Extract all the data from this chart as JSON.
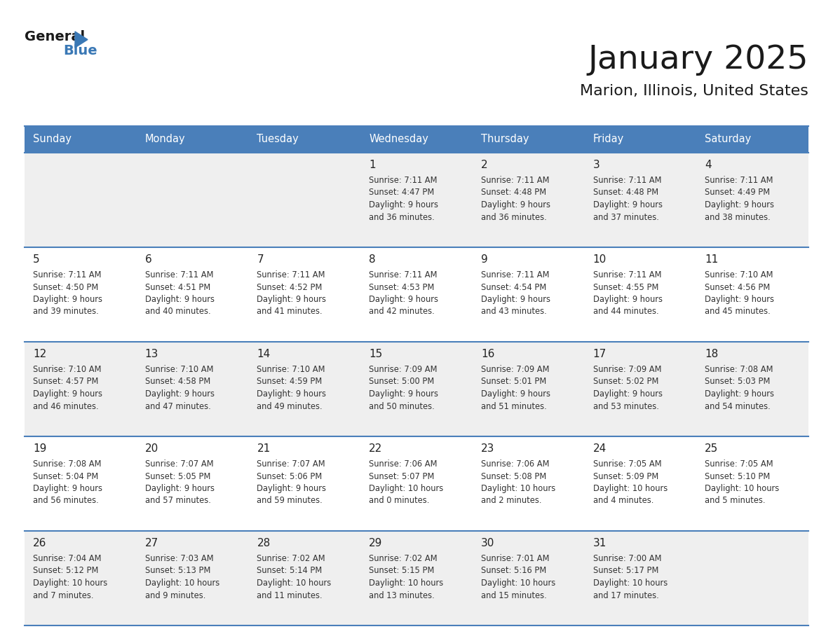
{
  "title": "January 2025",
  "subtitle": "Marion, Illinois, United States",
  "header_color": "#4a7fba",
  "header_text_color": "#FFFFFF",
  "cell_bg_white": "#FFFFFF",
  "cell_bg_gray": "#EFEFEF",
  "border_color": "#4a7fba",
  "text_color": "#333333",
  "day_num_color": "#222222",
  "days_of_week": [
    "Sunday",
    "Monday",
    "Tuesday",
    "Wednesday",
    "Thursday",
    "Friday",
    "Saturday"
  ],
  "calendar_data": [
    [
      {
        "day": "",
        "sunrise": "",
        "sunset": "",
        "daylight": ""
      },
      {
        "day": "",
        "sunrise": "",
        "sunset": "",
        "daylight": ""
      },
      {
        "day": "",
        "sunrise": "",
        "sunset": "",
        "daylight": ""
      },
      {
        "day": "1",
        "sunrise": "7:11 AM",
        "sunset": "4:47 PM",
        "daylight": "9 hours and 36 minutes."
      },
      {
        "day": "2",
        "sunrise": "7:11 AM",
        "sunset": "4:48 PM",
        "daylight": "9 hours and 36 minutes."
      },
      {
        "day": "3",
        "sunrise": "7:11 AM",
        "sunset": "4:48 PM",
        "daylight": "9 hours and 37 minutes."
      },
      {
        "day": "4",
        "sunrise": "7:11 AM",
        "sunset": "4:49 PM",
        "daylight": "9 hours and 38 minutes."
      }
    ],
    [
      {
        "day": "5",
        "sunrise": "7:11 AM",
        "sunset": "4:50 PM",
        "daylight": "9 hours and 39 minutes."
      },
      {
        "day": "6",
        "sunrise": "7:11 AM",
        "sunset": "4:51 PM",
        "daylight": "9 hours and 40 minutes."
      },
      {
        "day": "7",
        "sunrise": "7:11 AM",
        "sunset": "4:52 PM",
        "daylight": "9 hours and 41 minutes."
      },
      {
        "day": "8",
        "sunrise": "7:11 AM",
        "sunset": "4:53 PM",
        "daylight": "9 hours and 42 minutes."
      },
      {
        "day": "9",
        "sunrise": "7:11 AM",
        "sunset": "4:54 PM",
        "daylight": "9 hours and 43 minutes."
      },
      {
        "day": "10",
        "sunrise": "7:11 AM",
        "sunset": "4:55 PM",
        "daylight": "9 hours and 44 minutes."
      },
      {
        "day": "11",
        "sunrise": "7:10 AM",
        "sunset": "4:56 PM",
        "daylight": "9 hours and 45 minutes."
      }
    ],
    [
      {
        "day": "12",
        "sunrise": "7:10 AM",
        "sunset": "4:57 PM",
        "daylight": "9 hours and 46 minutes."
      },
      {
        "day": "13",
        "sunrise": "7:10 AM",
        "sunset": "4:58 PM",
        "daylight": "9 hours and 47 minutes."
      },
      {
        "day": "14",
        "sunrise": "7:10 AM",
        "sunset": "4:59 PM",
        "daylight": "9 hours and 49 minutes."
      },
      {
        "day": "15",
        "sunrise": "7:09 AM",
        "sunset": "5:00 PM",
        "daylight": "9 hours and 50 minutes."
      },
      {
        "day": "16",
        "sunrise": "7:09 AM",
        "sunset": "5:01 PM",
        "daylight": "9 hours and 51 minutes."
      },
      {
        "day": "17",
        "sunrise": "7:09 AM",
        "sunset": "5:02 PM",
        "daylight": "9 hours and 53 minutes."
      },
      {
        "day": "18",
        "sunrise": "7:08 AM",
        "sunset": "5:03 PM",
        "daylight": "9 hours and 54 minutes."
      }
    ],
    [
      {
        "day": "19",
        "sunrise": "7:08 AM",
        "sunset": "5:04 PM",
        "daylight": "9 hours and 56 minutes."
      },
      {
        "day": "20",
        "sunrise": "7:07 AM",
        "sunset": "5:05 PM",
        "daylight": "9 hours and 57 minutes."
      },
      {
        "day": "21",
        "sunrise": "7:07 AM",
        "sunset": "5:06 PM",
        "daylight": "9 hours and 59 minutes."
      },
      {
        "day": "22",
        "sunrise": "7:06 AM",
        "sunset": "5:07 PM",
        "daylight": "10 hours and 0 minutes."
      },
      {
        "day": "23",
        "sunrise": "7:06 AM",
        "sunset": "5:08 PM",
        "daylight": "10 hours and 2 minutes."
      },
      {
        "day": "24",
        "sunrise": "7:05 AM",
        "sunset": "5:09 PM",
        "daylight": "10 hours and 4 minutes."
      },
      {
        "day": "25",
        "sunrise": "7:05 AM",
        "sunset": "5:10 PM",
        "daylight": "10 hours and 5 minutes."
      }
    ],
    [
      {
        "day": "26",
        "sunrise": "7:04 AM",
        "sunset": "5:12 PM",
        "daylight": "10 hours and 7 minutes."
      },
      {
        "day": "27",
        "sunrise": "7:03 AM",
        "sunset": "5:13 PM",
        "daylight": "10 hours and 9 minutes."
      },
      {
        "day": "28",
        "sunrise": "7:02 AM",
        "sunset": "5:14 PM",
        "daylight": "10 hours and 11 minutes."
      },
      {
        "day": "29",
        "sunrise": "7:02 AM",
        "sunset": "5:15 PM",
        "daylight": "10 hours and 13 minutes."
      },
      {
        "day": "30",
        "sunrise": "7:01 AM",
        "sunset": "5:16 PM",
        "daylight": "10 hours and 15 minutes."
      },
      {
        "day": "31",
        "sunrise": "7:00 AM",
        "sunset": "5:17 PM",
        "daylight": "10 hours and 17 minutes."
      },
      {
        "day": "",
        "sunrise": "",
        "sunset": "",
        "daylight": ""
      }
    ]
  ]
}
